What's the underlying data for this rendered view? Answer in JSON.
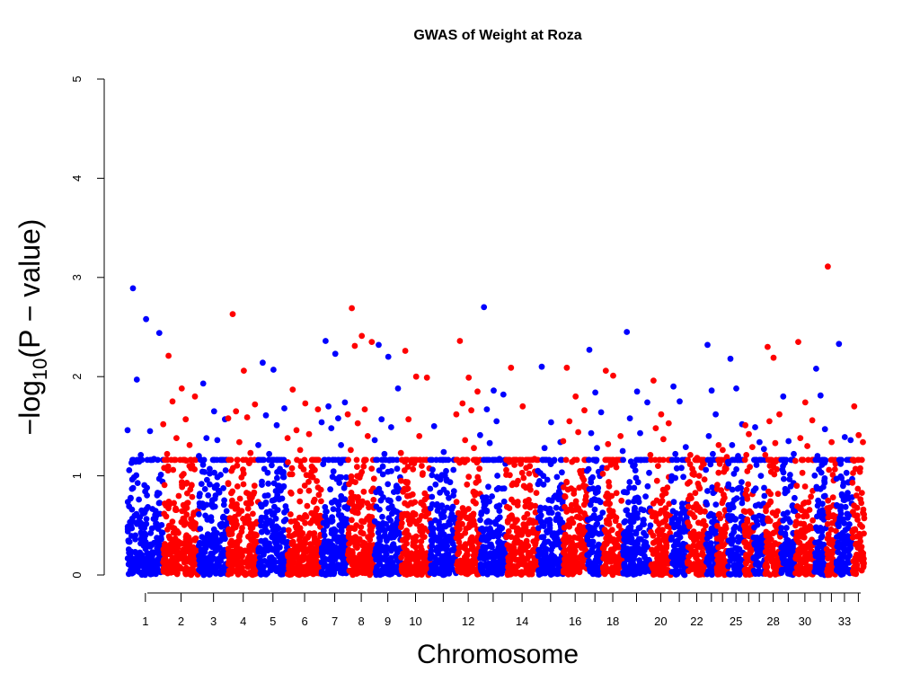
{
  "chart_data": {
    "type": "scatter",
    "title": "GWAS of Weight at Roza",
    "xlabel": "Chromosome",
    "ylabel_main": "−log",
    "ylabel_sub": "10",
    "ylabel_rest": "(P − value)",
    "ylim": [
      0,
      5
    ],
    "y_ticks": [
      "0",
      "1",
      "2",
      "3",
      "4",
      "5"
    ],
    "grid": false,
    "legend": "none",
    "colors": [
      "#0000ff",
      "#ff0000"
    ],
    "chromosome_tick_labels": [
      "1",
      "2",
      "3",
      "4",
      "5",
      "6",
      "7",
      "8",
      "9",
      "10",
      "12",
      "14",
      "16",
      "18",
      "20",
      "22",
      "25",
      "28",
      "30",
      "33"
    ],
    "chromosomes": [
      {
        "chr": "1",
        "start": 0,
        "end": 4.5,
        "label": "1",
        "color": "#0000ff",
        "top": [
          2.89,
          2.58,
          2.44,
          1.97,
          1.45,
          1.46,
          1.21,
          1.17,
          1.13
        ]
      },
      {
        "chr": "2",
        "start": 4.5,
        "end": 9.0,
        "label": "2",
        "color": "#ff0000",
        "top": [
          2.21,
          1.88,
          1.8,
          1.75,
          1.57,
          1.52,
          1.38,
          1.31,
          1.22
        ]
      },
      {
        "chr": "3",
        "start": 9.0,
        "end": 12.7,
        "label": "3",
        "color": "#0000ff",
        "top": [
          1.93,
          1.65,
          1.57,
          1.38,
          1.36,
          1.2,
          1.07,
          1.01
        ]
      },
      {
        "chr": "4",
        "start": 12.7,
        "end": 16.5,
        "label": "4",
        "color": "#ff0000",
        "top": [
          2.63,
          2.06,
          1.72,
          1.65,
          1.59,
          1.58,
          1.34,
          1.23,
          1.05
        ]
      },
      {
        "chr": "5",
        "start": 16.5,
        "end": 20.2,
        "label": "5",
        "color": "#0000ff",
        "top": [
          2.14,
          2.07,
          1.68,
          1.61,
          1.51,
          1.31,
          1.22,
          1.07
        ]
      },
      {
        "chr": "6",
        "start": 20.2,
        "end": 24.5,
        "label": "6",
        "color": "#ff0000",
        "top": [
          1.87,
          1.73,
          1.67,
          1.46,
          1.42,
          1.38,
          1.26,
          1.08
        ]
      },
      {
        "chr": "7",
        "start": 24.5,
        "end": 27.8,
        "label": "7",
        "color": "#0000ff",
        "top": [
          2.36,
          2.23,
          1.74,
          1.7,
          1.58,
          1.54,
          1.48,
          1.31
        ]
      },
      {
        "chr": "8",
        "start": 27.8,
        "end": 31.2,
        "label": "8",
        "color": "#ff0000",
        "top": [
          2.69,
          2.41,
          2.35,
          2.31,
          1.67,
          1.62,
          1.53,
          1.4,
          1.26
        ]
      },
      {
        "chr": "9",
        "start": 31.2,
        "end": 34.5,
        "label": "9",
        "color": "#0000ff",
        "top": [
          2.32,
          2.2,
          1.88,
          1.57,
          1.49,
          1.36,
          1.22
        ]
      },
      {
        "chr": "10",
        "start": 34.5,
        "end": 38.2,
        "label": "10",
        "color": "#ff0000",
        "top": [
          2.26,
          2.0,
          1.99,
          1.57,
          1.4,
          1.23,
          1.13,
          1.01
        ]
      },
      {
        "chr": "11",
        "start": 38.2,
        "end": 41.5,
        "label": "",
        "color": "#0000ff",
        "top": [
          1.5,
          1.24,
          1.06,
          0.99,
          0.95,
          0.87,
          0.83
        ]
      },
      {
        "chr": "12",
        "start": 41.5,
        "end": 44.5,
        "label": "12",
        "color": "#ff0000",
        "top": [
          2.36,
          1.99,
          1.85,
          1.73,
          1.66,
          1.62,
          1.36,
          1.28
        ]
      },
      {
        "chr": "13",
        "start": 44.5,
        "end": 47.8,
        "label": "",
        "color": "#0000ff",
        "top": [
          2.7,
          1.86,
          1.82,
          1.67,
          1.55,
          1.41,
          1.33,
          1.17
        ]
      },
      {
        "chr": "14",
        "start": 47.8,
        "end": 51.8,
        "label": "14",
        "color": "#ff0000",
        "top": [
          2.09,
          1.7,
          1.17,
          1.11,
          1.08,
          1.01,
          0.95,
          0.9
        ]
      },
      {
        "chr": "15",
        "start": 51.8,
        "end": 55.0,
        "label": "",
        "color": "#0000ff",
        "top": [
          2.1,
          1.54,
          1.34,
          1.28,
          1.15,
          1.05,
          0.96
        ]
      },
      {
        "chr": "16",
        "start": 55.0,
        "end": 58.0,
        "label": "16",
        "color": "#ff0000",
        "top": [
          2.09,
          1.8,
          1.66,
          1.55,
          1.44,
          1.35,
          1.14,
          1.02
        ]
      },
      {
        "chr": "17",
        "start": 58.0,
        "end": 60.0,
        "label": "",
        "color": "#0000ff",
        "top": [
          2.27,
          1.84,
          1.64,
          1.43,
          1.28,
          1.05
        ]
      },
      {
        "chr": "18",
        "start": 60.0,
        "end": 62.5,
        "label": "18",
        "color": "#ff0000",
        "top": [
          2.06,
          2.01,
          1.4,
          1.32,
          1.12,
          1.02
        ]
      },
      {
        "chr": "19",
        "start": 62.5,
        "end": 66.0,
        "label": "",
        "color": "#0000ff",
        "top": [
          2.45,
          1.85,
          1.74,
          1.58,
          1.43,
          1.25,
          1.1
        ]
      },
      {
        "chr": "20",
        "start": 66.0,
        "end": 68.6,
        "label": "20",
        "color": "#ff0000",
        "top": [
          1.96,
          1.62,
          1.53,
          1.48,
          1.37,
          1.21,
          1.1
        ]
      },
      {
        "chr": "21",
        "start": 68.6,
        "end": 70.7,
        "label": "",
        "color": "#0000ff",
        "top": [
          1.9,
          1.75,
          1.29,
          1.22,
          1.08,
          0.95
        ]
      },
      {
        "chr": "22",
        "start": 70.7,
        "end": 73.0,
        "label": "22",
        "color": "#ff0000",
        "top": [
          1.21,
          1.18,
          1.12,
          1.07,
          1.0,
          0.92
        ]
      },
      {
        "chr": "23",
        "start": 73.0,
        "end": 74.4,
        "label": "",
        "color": "#0000ff",
        "top": [
          2.32,
          1.86,
          1.62,
          1.4,
          1.22,
          1.06
        ]
      },
      {
        "chr": "24",
        "start": 74.4,
        "end": 75.8,
        "label": "",
        "color": "#ff0000",
        "top": [
          1.31,
          1.26,
          1.19,
          1.12,
          1.04
        ]
      },
      {
        "chr": "25",
        "start": 75.8,
        "end": 77.8,
        "label": "25",
        "color": "#0000ff",
        "top": [
          2.18,
          1.88,
          1.52,
          1.31,
          1.2,
          1.14,
          1.02
        ]
      },
      {
        "chr": "26",
        "start": 77.8,
        "end": 79.0,
        "label": "",
        "color": "#ff0000",
        "top": [
          1.51,
          1.42,
          1.29,
          1.21,
          1.09
        ]
      },
      {
        "chr": "27",
        "start": 79.0,
        "end": 80.5,
        "label": "",
        "color": "#0000ff",
        "top": [
          1.49,
          1.34,
          1.27,
          1.11,
          1.0
        ]
      },
      {
        "chr": "28",
        "start": 80.5,
        "end": 82.5,
        "label": "28",
        "color": "#ff0000",
        "top": [
          2.3,
          2.19,
          1.62,
          1.55,
          1.33,
          1.21,
          1.04
        ]
      },
      {
        "chr": "29",
        "start": 82.5,
        "end": 84.3,
        "label": "",
        "color": "#0000ff",
        "top": [
          1.8,
          1.35,
          1.22,
          1.13,
          1.01
        ]
      },
      {
        "chr": "30",
        "start": 84.3,
        "end": 86.7,
        "label": "30",
        "color": "#ff0000",
        "top": [
          2.35,
          1.74,
          1.56,
          1.38,
          1.3,
          1.15,
          1.03
        ]
      },
      {
        "chr": "31",
        "start": 86.7,
        "end": 88.2,
        "label": "",
        "color": "#0000ff",
        "top": [
          2.08,
          1.81,
          1.47,
          1.2,
          1.11
        ]
      },
      {
        "chr": "32",
        "start": 88.2,
        "end": 89.5,
        "label": "",
        "color": "#ff0000",
        "top": [
          3.11,
          1.34,
          1.12,
          1.06,
          1.01
        ]
      },
      {
        "chr": "33",
        "start": 89.5,
        "end": 91.5,
        "label": "33",
        "color": "#0000ff",
        "top": [
          2.33,
          1.39,
          1.36,
          1.12,
          1.03,
          0.97
        ]
      },
      {
        "chr": "34",
        "start": 91.5,
        "end": 93.0,
        "label": "",
        "color": "#ff0000",
        "top": [
          1.7,
          1.41,
          1.34,
          1.07,
          1.04,
          0.93
        ]
      }
    ]
  }
}
